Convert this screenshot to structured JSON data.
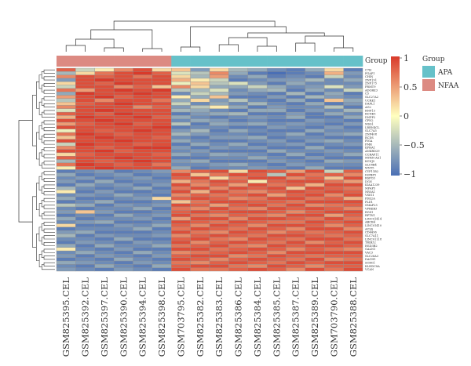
{
  "chart_data": {
    "type": "heatmap",
    "title": "",
    "group_annotation_label": "Group",
    "legend_title": "Group",
    "groups": [
      {
        "name": "APA",
        "color": "#66C1C9"
      },
      {
        "name": "NFAA",
        "color": "#DC8A82"
      }
    ],
    "columns": [
      {
        "name": "GSM825395.CEL",
        "group": "NFAA"
      },
      {
        "name": "GSM825392.CEL",
        "group": "NFAA"
      },
      {
        "name": "GSM825397.CEL",
        "group": "NFAA"
      },
      {
        "name": "GSM825390.CEL",
        "group": "NFAA"
      },
      {
        "name": "GSM825394.CEL",
        "group": "NFAA"
      },
      {
        "name": "GSM825398.CEL",
        "group": "NFAA"
      },
      {
        "name": "GSM703795.CEL",
        "group": "APA"
      },
      {
        "name": "GSM825382.CEL",
        "group": "APA"
      },
      {
        "name": "GSM825383.CEL",
        "group": "APA"
      },
      {
        "name": "GSM825386.CEL",
        "group": "APA"
      },
      {
        "name": "GSM825384.CEL",
        "group": "APA"
      },
      {
        "name": "GSM825385.CEL",
        "group": "APA"
      },
      {
        "name": "GSM825387.CEL",
        "group": "APA"
      },
      {
        "name": "GSM825389.CEL",
        "group": "APA"
      },
      {
        "name": "GSM703790.CEL",
        "group": "APA"
      },
      {
        "name": "GSM825388.CEL",
        "group": "APA"
      }
    ],
    "rows": [
      "C7H",
      "PGAP1",
      "CHIN",
      "ZNF191",
      "ZNF175",
      "PRMT9",
      "ADORE3",
      "C5",
      "SLC27A2",
      "UCRE1",
      "DAPL1",
      "AG2",
      "RNF13",
      "RCNK5",
      "DNPP2",
      "CPN2",
      "MSS1",
      "LRRN4CL",
      "SLC7A5",
      "ZNF408",
      "RCDS",
      "PIGA",
      "FMR",
      "EPHA1",
      "ANKRD29",
      "CCRAP11",
      "MYRN-AS1",
      "KCNJ5",
      "SLC8B4",
      "WNT5",
      "CYP11B2",
      "IGFBP5",
      "RSPO3",
      "DGN",
      "KIAA1239",
      "MFAP5",
      "NR5A1",
      "VSIG1",
      "PDE2A",
      "PLD1",
      "SMAP25",
      "VPREB3",
      "RGS1",
      "RPTN1",
      "LINC01414",
      "ABCB4",
      "LINC01410",
      "ACSS",
      "CD4496",
      "SLC7A11",
      "LINC01118",
      "TRIB32",
      "HSD3B2",
      "GALN1",
      "VAC3",
      "SLC26A3",
      "DACH1",
      "SCRG1",
      "KLHDC8A",
      "VCAN"
    ],
    "values": [
      [
        0.8,
        -0.3,
        0.1,
        0.6,
        0.9,
        0.2,
        0.3,
        -0.7,
        0.2,
        -0.5,
        -0.6,
        -0.8,
        -0.9,
        -0.6,
        0.2,
        -0.9
      ],
      [
        -0.5,
        0.2,
        0.7,
        0.9,
        1.0,
        0.8,
        -0.2,
        -0.4,
        0.6,
        -0.6,
        -0.9,
        -1.0,
        -0.9,
        -0.8,
        0.4,
        -0.7
      ],
      [
        0.6,
        0.9,
        0.8,
        0.9,
        0.7,
        0.9,
        0.2,
        -0.5,
        0.5,
        -0.8,
        -0.6,
        -0.9,
        -0.8,
        -0.9,
        -0.3,
        -0.8
      ],
      [
        -0.7,
        0.9,
        1.0,
        0.9,
        0.9,
        0.9,
        0.4,
        0.1,
        -0.3,
        -0.9,
        -0.8,
        -0.7,
        -0.7,
        -0.5,
        -0.8,
        -0.6
      ],
      [
        0.2,
        0.9,
        0.8,
        1.0,
        0.9,
        0.9,
        -0.1,
        0.3,
        -0.4,
        -0.2,
        -0.7,
        -0.9,
        -0.6,
        -0.8,
        -0.8,
        -0.8
      ],
      [
        -0.3,
        0.9,
        0.9,
        0.6,
        0.8,
        0.3,
        0.6,
        0.2,
        -0.6,
        -0.6,
        -0.3,
        -0.6,
        -0.8,
        -0.7,
        -0.2,
        -0.7
      ],
      [
        0.7,
        0.5,
        0.9,
        1.0,
        0.9,
        1.0,
        -0.4,
        -0.5,
        -0.2,
        -0.8,
        -0.6,
        -0.5,
        -0.9,
        -0.6,
        -0.8,
        -0.3
      ],
      [
        -0.6,
        1.0,
        0.9,
        0.9,
        1.0,
        0.9,
        -0.8,
        -0.3,
        -0.5,
        -0.7,
        -0.8,
        -0.9,
        -0.5,
        -0.9,
        -0.6,
        -0.9
      ],
      [
        0.5,
        0.9,
        1.0,
        0.8,
        0.9,
        0.9,
        0.1,
        -0.6,
        0.3,
        -0.9,
        -0.9,
        -0.7,
        -0.9,
        -0.5,
        -0.7,
        -0.8
      ],
      [
        -0.4,
        0.9,
        0.6,
        0.9,
        0.9,
        0.7,
        -0.6,
        0.2,
        -0.7,
        -0.4,
        -0.8,
        -0.9,
        -0.6,
        -0.9,
        0.3,
        -0.6
      ],
      [
        0.3,
        0.8,
        0.9,
        1.0,
        0.9,
        0.9,
        -0.3,
        -0.8,
        -0.6,
        -0.8,
        -0.5,
        -0.8,
        -0.9,
        -0.6,
        -0.9,
        -0.7
      ],
      [
        0.6,
        0.9,
        0.9,
        0.9,
        0.6,
        0.8,
        -0.7,
        -0.4,
        0.1,
        -0.6,
        -0.9,
        -0.7,
        -0.8,
        -0.8,
        -0.4,
        -0.9
      ],
      [
        -0.2,
        0.9,
        1.0,
        0.9,
        0.9,
        0.9,
        -0.5,
        -0.6,
        -0.8,
        -0.9,
        -0.6,
        -0.6,
        -0.9,
        -0.7,
        -0.8,
        -0.5
      ],
      [
        0.8,
        0.9,
        0.8,
        1.0,
        0.9,
        0.9,
        -0.9,
        -0.7,
        -0.6,
        -0.5,
        -0.9,
        -0.9,
        -0.7,
        -0.9,
        -0.6,
        -0.8
      ],
      [
        0.4,
        1.0,
        0.9,
        0.9,
        1.0,
        0.8,
        -0.6,
        -0.8,
        -0.9,
        -0.8,
        -0.7,
        -0.8,
        -0.6,
        -0.9,
        -0.9,
        -0.6
      ],
      [
        0.9,
        0.9,
        1.0,
        0.9,
        0.9,
        0.9,
        -0.8,
        -0.6,
        -0.7,
        -0.9,
        -0.8,
        -0.9,
        -0.9,
        -0.7,
        -0.8,
        -0.9
      ],
      [
        0.5,
        0.8,
        0.9,
        1.0,
        0.8,
        0.9,
        -0.4,
        -0.9,
        -0.6,
        -0.7,
        -0.6,
        -0.8,
        -0.7,
        -0.8,
        -0.9,
        -0.7
      ],
      [
        0.9,
        0.9,
        0.9,
        0.9,
        0.9,
        1.0,
        -0.9,
        -0.8,
        -0.8,
        -0.9,
        -0.9,
        -0.7,
        -0.8,
        -0.9,
        -0.7,
        -0.9
      ],
      [
        -0.1,
        0.9,
        0.8,
        0.9,
        1.0,
        0.9,
        -0.7,
        -0.5,
        -0.9,
        -0.6,
        -0.8,
        -0.9,
        -0.9,
        -0.6,
        -0.8,
        -0.8
      ],
      [
        0.7,
        1.0,
        0.9,
        0.8,
        0.9,
        0.9,
        -0.5,
        -0.7,
        -0.8,
        -0.8,
        -0.9,
        -0.8,
        -0.6,
        -0.9,
        -0.7,
        -0.6
      ],
      [
        0.3,
        0.9,
        1.0,
        0.9,
        0.9,
        0.8,
        -0.8,
        -0.9,
        -0.7,
        -0.7,
        -0.6,
        -0.9,
        -0.8,
        -0.8,
        -0.9,
        -0.9
      ],
      [
        0.9,
        0.9,
        0.9,
        1.0,
        0.9,
        0.9,
        -0.6,
        -0.8,
        -0.9,
        -0.9,
        -0.8,
        -0.7,
        -0.9,
        -0.7,
        -0.6,
        -0.8
      ],
      [
        -0.3,
        1.0,
        0.9,
        0.9,
        0.8,
        0.9,
        -0.9,
        -0.6,
        -0.8,
        -0.6,
        -0.9,
        -0.8,
        -0.7,
        -0.9,
        -0.8,
        -0.7
      ],
      [
        0.6,
        0.9,
        0.8,
        0.9,
        1.0,
        1.0,
        -0.7,
        -0.9,
        -0.7,
        -0.8,
        -0.7,
        -0.9,
        -0.9,
        -0.6,
        -0.9,
        -0.9
      ],
      [
        0.9,
        0.9,
        1.0,
        0.8,
        0.9,
        0.9,
        -0.8,
        -0.7,
        -0.9,
        -0.9,
        -0.9,
        -0.6,
        -0.8,
        -0.8,
        -0.7,
        -0.8
      ],
      [
        0.2,
        0.8,
        0.9,
        0.9,
        0.9,
        0.8,
        -0.6,
        -0.8,
        -0.6,
        -0.7,
        -0.8,
        -0.9,
        -0.6,
        -0.9,
        -0.8,
        -0.6
      ],
      [
        0.8,
        0.9,
        0.9,
        1.0,
        0.9,
        0.9,
        -0.9,
        -0.9,
        -0.8,
        -0.8,
        -0.6,
        -0.8,
        -0.9,
        -0.7,
        -0.9,
        -0.9
      ],
      [
        -0.5,
        0.9,
        0.8,
        0.9,
        1.0,
        0.9,
        -0.7,
        -0.6,
        -0.9,
        -0.9,
        -0.9,
        -0.7,
        -0.8,
        -0.9,
        -0.6,
        -0.7
      ],
      [
        0.7,
        1.0,
        0.9,
        0.8,
        0.9,
        0.7,
        -0.8,
        -0.8,
        -0.7,
        -0.6,
        -0.8,
        -0.9,
        -0.7,
        -0.8,
        -0.8,
        -0.8
      ],
      [
        0.1,
        0.9,
        1.0,
        0.9,
        0.9,
        0.9,
        -0.6,
        -0.9,
        -0.8,
        -0.8,
        -0.7,
        -0.8,
        -0.9,
        -0.6,
        -0.9,
        -0.9
      ],
      [
        -0.9,
        -0.8,
        -0.7,
        -0.9,
        -0.8,
        -0.7,
        0.6,
        0.8,
        0.9,
        0.2,
        0.9,
        0.8,
        0.5,
        0.9,
        -0.3,
        0.8
      ],
      [
        -0.6,
        -0.9,
        -0.8,
        -0.7,
        -0.9,
        -0.8,
        0.9,
        0.3,
        0.7,
        0.9,
        0.8,
        -0.4,
        0.9,
        0.7,
        0.8,
        0.6
      ],
      [
        -0.8,
        -0.7,
        -0.9,
        -0.8,
        -0.7,
        -0.9,
        0.8,
        0.9,
        0.2,
        0.7,
        0.9,
        0.9,
        0.6,
        0.8,
        0.3,
        0.9
      ],
      [
        -0.7,
        -0.9,
        -0.6,
        -0.9,
        -0.8,
        -0.8,
        0.4,
        0.7,
        0.9,
        0.8,
        0.1,
        0.8,
        0.9,
        0.9,
        0.7,
        0.5
      ],
      [
        -0.9,
        -0.6,
        -0.8,
        -0.7,
        -0.9,
        -0.7,
        0.9,
        0.6,
        0.8,
        0.5,
        0.9,
        0.7,
        0.8,
        0.4,
        0.9,
        0.9
      ],
      [
        -0.5,
        -0.8,
        -0.9,
        -0.8,
        -0.6,
        -0.9,
        0.7,
        0.9,
        0.6,
        0.9,
        0.8,
        0.9,
        0.3,
        0.9,
        0.8,
        0.7
      ],
      [
        0.1,
        -0.9,
        -0.7,
        -0.9,
        -0.9,
        -0.8,
        0.9,
        0.4,
        0.9,
        0.7,
        0.6,
        0.8,
        0.9,
        0.8,
        0.9,
        0.8
      ],
      [
        -0.8,
        -0.7,
        -0.8,
        -0.6,
        -0.8,
        -0.9,
        0.6,
        0.8,
        0.7,
        0.8,
        0.9,
        0.5,
        0.8,
        0.9,
        0.6,
        0.9
      ],
      [
        -0.6,
        -0.9,
        -0.9,
        -0.8,
        -0.7,
        0.2,
        0.8,
        0.9,
        0.8,
        0.6,
        0.7,
        0.9,
        0.9,
        0.7,
        0.8,
        0.4
      ],
      [
        -0.9,
        -0.8,
        -0.6,
        -0.9,
        -0.9,
        -0.8,
        0.3,
        0.7,
        0.9,
        0.9,
        0.8,
        0.8,
        0.7,
        0.9,
        0.9,
        0.9
      ],
      [
        -0.4,
        -0.6,
        -0.9,
        -0.7,
        -0.8,
        -0.7,
        0.9,
        0.8,
        0.5,
        0.8,
        0.9,
        0.7,
        0.9,
        0.6,
        0.7,
        0.8
      ],
      [
        -0.8,
        -0.9,
        -0.8,
        -0.8,
        -0.6,
        -0.9,
        0.7,
        0.6,
        0.9,
        0.7,
        0.6,
        0.9,
        0.8,
        0.9,
        0.8,
        0.6
      ],
      [
        -0.7,
        0.3,
        -0.7,
        -0.9,
        -0.9,
        -0.8,
        0.8,
        0.9,
        0.8,
        0.9,
        0.9,
        0.8,
        0.6,
        0.8,
        0.9,
        0.9
      ],
      [
        -0.9,
        -0.8,
        -0.9,
        -0.6,
        -0.8,
        -0.7,
        0.9,
        0.7,
        0.6,
        0.8,
        0.7,
        0.6,
        0.9,
        0.9,
        0.5,
        0.8
      ],
      [
        -0.6,
        -0.9,
        -0.8,
        -0.8,
        -0.7,
        -0.9,
        0.5,
        0.9,
        0.9,
        0.6,
        0.9,
        0.9,
        0.8,
        0.7,
        0.9,
        0.7
      ],
      [
        -0.8,
        -0.7,
        -0.6,
        -0.9,
        -0.9,
        -0.8,
        0.9,
        0.8,
        0.7,
        0.9,
        0.8,
        0.7,
        0.7,
        0.9,
        0.8,
        0.9
      ],
      [
        0.2,
        -0.9,
        -0.9,
        -0.7,
        -0.8,
        -0.6,
        0.8,
        0.6,
        0.9,
        0.8,
        0.6,
        0.9,
        0.9,
        0.8,
        0.6,
        0.8
      ],
      [
        -0.9,
        -0.8,
        -0.8,
        -0.8,
        -0.6,
        -0.9,
        0.7,
        0.9,
        0.8,
        0.7,
        0.9,
        0.8,
        0.6,
        0.9,
        0.9,
        0.6
      ],
      [
        -0.7,
        -0.6,
        -0.9,
        -0.9,
        -0.9,
        -0.8,
        0.9,
        0.7,
        0.6,
        0.9,
        0.8,
        0.6,
        0.8,
        0.7,
        0.8,
        0.9
      ],
      [
        -0.5,
        -0.9,
        -0.7,
        -0.8,
        -0.8,
        -0.7,
        0.6,
        0.8,
        0.9,
        0.8,
        0.7,
        0.9,
        0.9,
        0.8,
        0.7,
        0.8
      ],
      [
        -0.8,
        -0.8,
        -0.9,
        -0.6,
        -0.9,
        -0.9,
        0.8,
        0.9,
        0.7,
        0.6,
        0.9,
        0.8,
        0.7,
        0.9,
        0.9,
        0.7
      ],
      [
        -0.9,
        -0.7,
        -0.8,
        -0.9,
        -0.7,
        -0.8,
        0.9,
        0.6,
        0.8,
        0.9,
        0.8,
        0.7,
        0.9,
        0.6,
        0.8,
        0.9
      ],
      [
        -0.6,
        -0.9,
        -0.6,
        -0.8,
        -0.8,
        -0.6,
        0.7,
        0.8,
        0.9,
        0.7,
        0.6,
        0.9,
        0.8,
        0.9,
        0.9,
        0.8
      ],
      [
        0.1,
        -0.8,
        -0.9,
        -0.7,
        -0.9,
        -0.9,
        0.9,
        0.9,
        0.7,
        0.8,
        0.9,
        0.8,
        0.6,
        0.8,
        0.7,
        0.6
      ],
      [
        -0.8,
        -0.6,
        -0.8,
        -0.9,
        -0.6,
        -0.8,
        0.6,
        0.7,
        0.8,
        0.9,
        0.8,
        0.6,
        0.9,
        0.9,
        0.9,
        0.9
      ],
      [
        -0.7,
        -0.9,
        -0.7,
        -0.8,
        -0.9,
        -0.7,
        0.8,
        0.9,
        0.9,
        0.6,
        0.7,
        0.9,
        0.8,
        0.7,
        0.8,
        0.8
      ],
      [
        -0.9,
        -0.8,
        -0.9,
        -0.6,
        -0.8,
        -0.9,
        0.9,
        0.8,
        0.6,
        0.8,
        0.9,
        0.8,
        0.7,
        0.9,
        0.6,
        0.7
      ],
      [
        -0.6,
        -0.7,
        -0.8,
        -0.9,
        -0.7,
        -0.8,
        0.7,
        0.6,
        0.8,
        0.9,
        0.8,
        0.7,
        0.9,
        0.8,
        0.9,
        0.9
      ],
      [
        -0.8,
        -0.9,
        -0.6,
        -0.8,
        -0.9,
        -0.6,
        0.8,
        0.9,
        0.9,
        0.7,
        0.6,
        0.9,
        0.8,
        0.6,
        0.8,
        0.8
      ],
      [
        -0.7,
        -0.8,
        -0.9,
        -0.7,
        -0.8,
        -0.9,
        0.9,
        0.7,
        0.7,
        0.8,
        0.9,
        0.8,
        0.6,
        0.9,
        0.7,
        0.9
      ]
    ],
    "colorscale": {
      "low": "#4A6FB5",
      "mid": "#FFFFBF",
      "high": "#D93A2A"
    },
    "colorbar": {
      "ticks": [
        1,
        0.5,
        0,
        -0.5,
        -1
      ],
      "tick_labels": [
        "1",
        "0.5",
        "0",
        "−0.5",
        "−1"
      ],
      "range": [
        -1,
        1
      ]
    },
    "dendrograms": {
      "columns": true,
      "rows": true
    },
    "legend_placement": "right"
  }
}
